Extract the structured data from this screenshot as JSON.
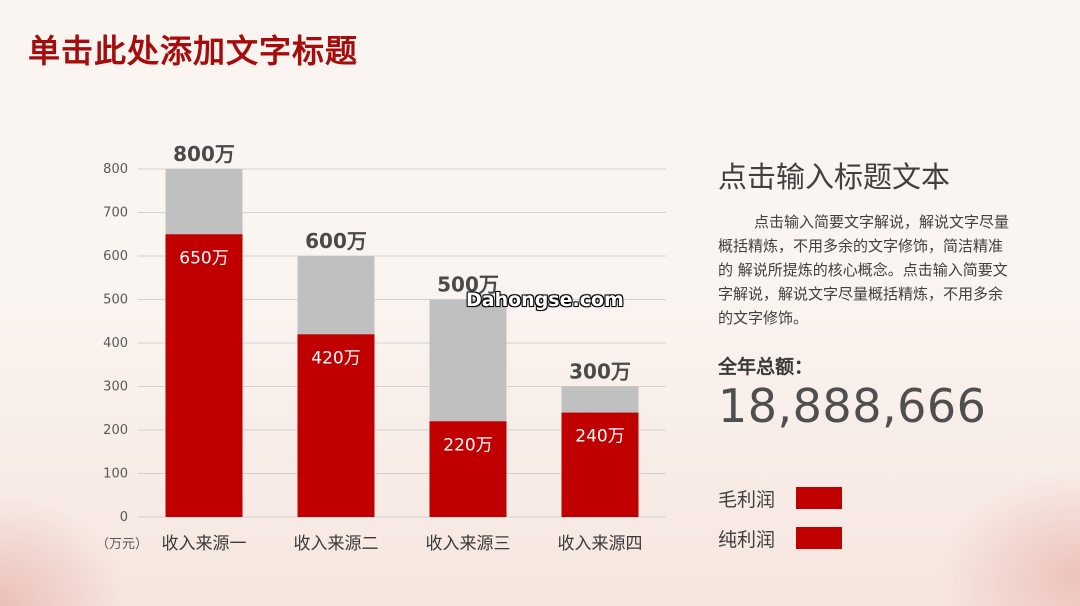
{
  "title": "单击此处添加文字标题",
  "watermark": "Dahongse.com",
  "panel": {
    "heading": "点击输入标题文本",
    "body": "点击输入简要文字解说，解说文字尽量概括精炼，不用多余的文字修饰，简洁精准的 解说所提炼的核心概念。点击输入简要文字解说，解说文字尽量概括精炼，不用多余的文字修饰。",
    "total_caption": "全年总额：",
    "total_value": "18,888,666"
  },
  "legend": [
    {
      "label": "毛利润",
      "color": "#c00000"
    },
    {
      "label": "纯利润",
      "color": "#c00000"
    }
  ],
  "chart_data": {
    "type": "bar",
    "categories": [
      "收入来源一",
      "收入来源二",
      "收入来源三",
      "收入来源四"
    ],
    "series": [
      {
        "name": "毛利润",
        "values": [
          800,
          600,
          500,
          300
        ],
        "labels": [
          "800万",
          "600万",
          "500万",
          "300万"
        ],
        "color": "#c0c0c0"
      },
      {
        "name": "纯利润",
        "values": [
          650,
          420,
          220,
          240
        ],
        "labels": [
          "650万",
          "420万",
          "220万",
          "240万"
        ],
        "color": "#c00000"
      }
    ],
    "ylim": [
      0,
      800
    ],
    "yticks": [
      0,
      100,
      200,
      300,
      400,
      500,
      600,
      700,
      800
    ],
    "ylabel": "",
    "unit_label": "（万元）",
    "grid": true,
    "legend_position": "right"
  }
}
